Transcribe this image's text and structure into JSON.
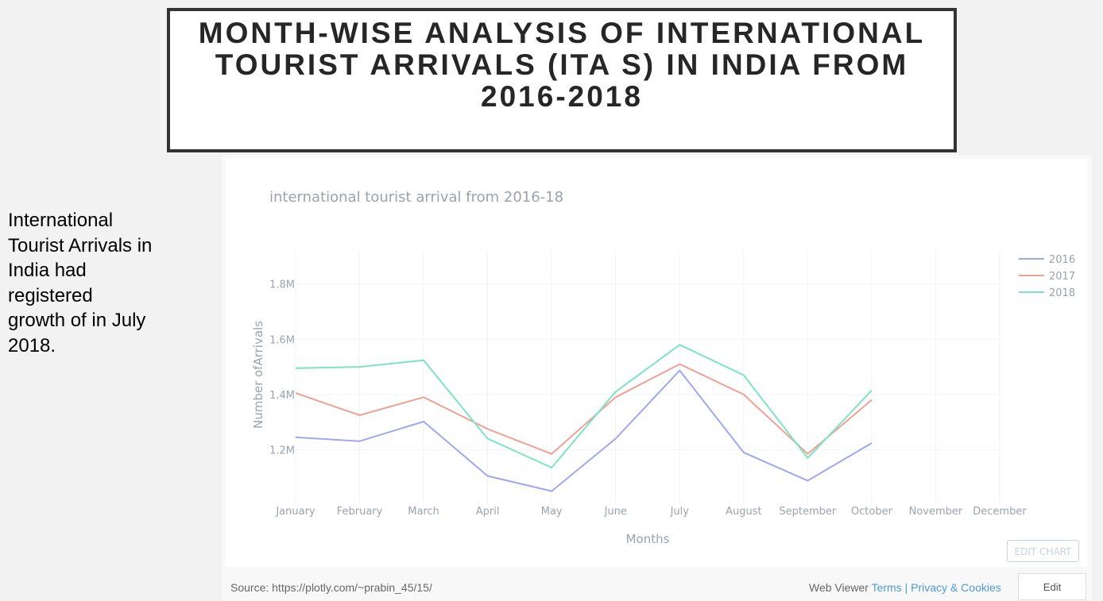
{
  "page": {
    "title": "MONTH-WISE ANALYSIS OF INTERNATIONAL TOURIST ARRIVALS (ITA S) IN INDIA FROM 2016-2018",
    "side_text": "International Tourist Arrivals in India had registered growth of in July 2018."
  },
  "chart_panel": {
    "edit_chart_label": "EDIT CHART"
  },
  "footer": {
    "source": "Source: https://plotly.com/~prabin_45/15/",
    "viewer_label": "Web Viewer",
    "terms_label": "Terms",
    "separator": "|",
    "privacy_label": "Privacy & Cookies",
    "edit_label": "Edit"
  },
  "chart_data": {
    "type": "line",
    "title": "international tourist arrival from 2016-18",
    "xlabel": "Months",
    "ylabel": "Number ofArrivals",
    "categories": [
      "January",
      "February",
      "March",
      "April",
      "May",
      "June",
      "July",
      "August",
      "September",
      "October",
      "November",
      "December"
    ],
    "ylim": [
      1000000,
      1920000
    ],
    "yticks": [
      1200000,
      1400000,
      1600000,
      1800000
    ],
    "ytick_labels": [
      "1.2M",
      "1.4M",
      "1.6M",
      "1.8M"
    ],
    "grid": true,
    "legend_position": "top-right",
    "series": [
      {
        "name": "2016",
        "color": "#a0a7f0",
        "values": [
          1245000,
          1231000,
          1302000,
          1105000,
          1050000,
          1240000,
          1487000,
          1190000,
          1088000,
          1224000,
          null,
          null
        ]
      },
      {
        "name": "2017",
        "color": "#f0a194",
        "values": [
          1405000,
          1325000,
          1390000,
          1275000,
          1185000,
          1390000,
          1510000,
          1400000,
          1185000,
          1380000,
          null,
          null
        ]
      },
      {
        "name": "2018",
        "color": "#7ee3c3",
        "values": [
          1495000,
          1500000,
          1524000,
          1240000,
          1135000,
          1410000,
          1580000,
          1470000,
          1170000,
          1415000,
          null,
          null
        ]
      }
    ]
  }
}
